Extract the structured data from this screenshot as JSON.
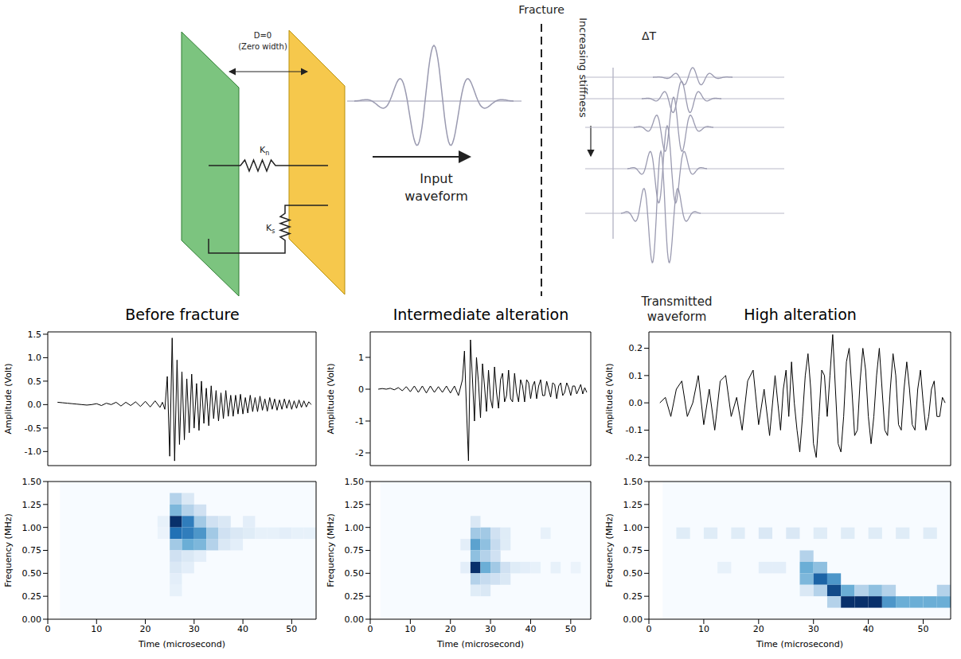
{
  "diagram": {
    "gap": "D=0",
    "gap_note": "(Zero width)",
    "normal_stiffness": {
      "symbol": "K",
      "subscript": "n"
    },
    "shear_stiffness": {
      "symbol": "K",
      "subscript": "s"
    },
    "input": "Input waveform",
    "fracture": "Fracture",
    "delay": "ΔT",
    "stiffness_trend": "Increasing stiffness",
    "output": "Transmitted waveform"
  },
  "chart_data": [
    {
      "type": "line",
      "title": "Before fracture",
      "y_label": "Amplitude (Volt)",
      "color": "#000000",
      "tick_labels": "y",
      "xlim": [
        0,
        55
      ],
      "ylim": [
        -1.3,
        1.55
      ],
      "yticks": [
        {
          "value": -1,
          "label": "-1.0"
        },
        {
          "value": -0.5,
          "label": "-0.5"
        },
        {
          "value": 0,
          "label": "0.0"
        },
        {
          "value": 0.5,
          "label": "0.5"
        },
        {
          "value": 1,
          "label": "1.0"
        },
        {
          "value": 1.5,
          "label": "1.5"
        }
      ],
      "x": [
        2,
        3,
        4,
        5,
        6,
        7,
        8,
        9,
        10,
        11,
        12,
        13,
        14,
        15,
        16,
        17,
        18,
        19,
        20,
        21,
        22,
        23,
        23.5,
        24,
        24.5,
        25,
        25.5,
        26,
        26.5,
        27,
        27.5,
        28,
        28.5,
        29,
        29.5,
        30,
        30.5,
        31,
        31.5,
        32,
        32.5,
        33,
        33.5,
        34,
        34.5,
        35,
        35.5,
        36,
        36.5,
        37,
        37.5,
        38,
        38.5,
        39,
        39.5,
        40,
        40.5,
        41,
        41.5,
        42,
        42.5,
        43,
        43.5,
        44,
        44.5,
        45,
        45.5,
        46,
        46.5,
        47,
        47.5,
        48,
        48.5,
        49,
        49.5,
        50,
        50.5,
        51,
        51.5,
        52,
        52.5,
        53,
        53.5,
        54
      ],
      "values": [
        0.05,
        0.04,
        0.03,
        0.02,
        0.01,
        0,
        -0.01,
        0,
        0.02,
        -0.02,
        0.03,
        0,
        0.05,
        -0.03,
        0.05,
        -0.02,
        0.06,
        -0.04,
        0.07,
        -0.05,
        0.08,
        -0.06,
        0.05,
        -0.1,
        0.6,
        -1.1,
        1.42,
        -1.2,
        0.95,
        -0.85,
        0.7,
        -0.75,
        0.55,
        -0.6,
        0.65,
        -0.5,
        0.45,
        -0.55,
        0.5,
        -0.4,
        0.35,
        -0.45,
        0.4,
        -0.3,
        0.3,
        -0.35,
        0.25,
        -0.3,
        0.3,
        -0.25,
        0.2,
        -0.25,
        0.2,
        -0.2,
        0.22,
        -0.2,
        0.15,
        -0.18,
        0.2,
        -0.15,
        0.15,
        -0.15,
        0.18,
        -0.12,
        0.12,
        -0.14,
        0.15,
        -0.1,
        0.12,
        -0.12,
        0.1,
        -0.1,
        0.12,
        -0.08,
        0.1,
        -0.1,
        0.08,
        -0.08,
        0.1,
        -0.06,
        0.08,
        -0.05,
        0.06,
        0
      ]
    },
    {
      "type": "line",
      "title": "Intermediate alteration",
      "y_label": "Amplitude (Volt)",
      "color": "#000000",
      "tick_labels": "y",
      "xlim": [
        0,
        55
      ],
      "ylim": [
        -2.4,
        1.8
      ],
      "yticks": [
        -2,
        -1,
        0,
        1
      ],
      "x": [
        2,
        3,
        4,
        5,
        6,
        7,
        8,
        9,
        10,
        11,
        12,
        13,
        14,
        15,
        16,
        17,
        18,
        19,
        20,
        21,
        22,
        23,
        23.5,
        24,
        24.5,
        25,
        25.5,
        26,
        26.5,
        27,
        27.5,
        28,
        28.5,
        29,
        29.5,
        30,
        30.5,
        31,
        31.5,
        32,
        32.5,
        33,
        33.5,
        34,
        34.5,
        35,
        35.5,
        36,
        36.5,
        37,
        37.5,
        38,
        38.5,
        39,
        39.5,
        40,
        40.5,
        41,
        41.5,
        42,
        42.5,
        43,
        43.5,
        44,
        44.5,
        45,
        45.5,
        46,
        46.5,
        47,
        47.5,
        48,
        48.5,
        49,
        49.5,
        50,
        50.5,
        51,
        51.5,
        52,
        52.5,
        53,
        53.5,
        54
      ],
      "values": [
        0,
        0.02,
        0,
        0.03,
        -0.02,
        0.05,
        -0.05,
        0.08,
        -0.08,
        0.1,
        -0.1,
        0.1,
        -0.12,
        0.1,
        -0.1,
        0.08,
        -0.1,
        0.1,
        -0.12,
        0.1,
        -0.2,
        0.3,
        1.2,
        -0.6,
        -2.25,
        1.55,
        0.3,
        -1.0,
        1.0,
        0.2,
        -0.9,
        0.8,
        0.1,
        -0.7,
        0.6,
        -0.3,
        -0.6,
        0.7,
        -0.1,
        -0.6,
        0.3,
        0.5,
        -0.4,
        -0.2,
        0.6,
        -0.3,
        -0.4,
        0.5,
        -0.1,
        -0.4,
        0.3,
        0.1,
        -0.4,
        0.3,
        0.2,
        -0.3,
        0.1,
        0.25,
        -0.3,
        0.1,
        0.3,
        -0.2,
        -0.2,
        0.25,
        0,
        -0.25,
        0.2,
        0.15,
        -0.3,
        0.1,
        0.2,
        -0.2,
        -0.1,
        0.2,
        0.05,
        -0.2,
        0.1,
        0.1,
        -0.15,
        0,
        0.15,
        -0.15,
        0.05,
        -0.1
      ]
    },
    {
      "type": "line",
      "title": "High alteration",
      "y_label": "Amplitude (Volt)",
      "color": "#000000",
      "tick_labels": "y",
      "xlim": [
        0,
        55
      ],
      "ylim": [
        -0.23,
        0.26
      ],
      "yticks": [
        {
          "value": -0.2,
          "label": "-0.2"
        },
        {
          "value": -0.1,
          "label": "-0.1"
        },
        {
          "value": 0,
          "label": "0.0"
        },
        {
          "value": 0.1,
          "label": "0.1"
        },
        {
          "value": 0.2,
          "label": "0.2"
        }
      ],
      "x": [
        2,
        3,
        4,
        5,
        6,
        7,
        8,
        9,
        10,
        11,
        12,
        13,
        14,
        15,
        16,
        17,
        18,
        19,
        20,
        21,
        22,
        23,
        23.5,
        24,
        24.5,
        25,
        25.5,
        26,
        26.5,
        27,
        27.5,
        28,
        28.5,
        29,
        29.5,
        30,
        30.5,
        31,
        31.5,
        32,
        32.5,
        33,
        33.5,
        34,
        34.5,
        35,
        35.5,
        36,
        36.5,
        37,
        37.5,
        38,
        38.5,
        39,
        39.5,
        40,
        40.5,
        41,
        41.5,
        42,
        42.5,
        43,
        43.5,
        44,
        44.5,
        45,
        45.5,
        46,
        46.5,
        47,
        47.5,
        48,
        48.5,
        49,
        49.5,
        50,
        50.5,
        51,
        51.5,
        52,
        52.5,
        53,
        53.5,
        54
      ],
      "values": [
        0,
        0.02,
        -0.05,
        0.05,
        0.08,
        -0.05,
        0,
        0.1,
        -0.08,
        0.05,
        -0.1,
        0.08,
        0.1,
        -0.05,
        0.02,
        -0.1,
        0.08,
        0.12,
        -0.08,
        0.05,
        -0.12,
        0.1,
        0,
        -0.1,
        0.05,
        0.12,
        -0.05,
        0.15,
        0,
        -0.1,
        -0.18,
        -0.05,
        0.1,
        0.18,
        0.05,
        -0.15,
        -0.2,
        -0.05,
        0.12,
        0.1,
        -0.05,
        0.1,
        0.25,
        0.05,
        -0.15,
        -0.18,
        -0.05,
        0.15,
        0.2,
        0.05,
        -0.12,
        -0.1,
        0.08,
        0.2,
        0.12,
        -0.05,
        -0.15,
        -0.05,
        0.1,
        0.2,
        0.05,
        -0.1,
        -0.12,
        0.05,
        0.18,
        0.1,
        -0.08,
        -0.1,
        0.05,
        0.15,
        0.05,
        -0.08,
        -0.1,
        0.05,
        0.12,
        0,
        -0.1,
        -0.05,
        0.05,
        0.08,
        -0.05,
        -0.05,
        0.02,
        0
      ]
    },
    {
      "type": "heatmap",
      "x_label": "Time (microsecond)",
      "y_label": "Frequency (MHz)",
      "xlim": [
        0,
        55
      ],
      "ylim": [
        0,
        1.5
      ],
      "xticks": [
        0,
        10,
        20,
        30,
        40,
        50
      ],
      "yticks": [
        {
          "value": 0,
          "label": "0.00"
        },
        {
          "value": 0.25,
          "label": "0.25"
        },
        {
          "value": 0.5,
          "label": "0.50"
        },
        {
          "value": 0.75,
          "label": "0.75"
        },
        {
          "value": 1,
          "label": "1.00"
        },
        {
          "value": 1.25,
          "label": "1.25"
        },
        {
          "value": 1.5,
          "label": "1.50"
        }
      ],
      "time_bins": [
        2.5,
        5,
        7.5,
        10,
        12.5,
        15,
        17.5,
        20,
        22.5,
        25,
        27.5,
        30,
        32.5,
        35,
        37.5,
        40,
        42.5,
        45,
        47.5,
        50,
        52.5,
        55
      ],
      "frequency_bins": [
        0,
        0.125,
        0.25,
        0.375,
        0.5,
        0.625,
        0.75,
        0.875,
        1,
        1.125,
        1.25,
        1.375,
        1.5
      ],
      "cells": [
        [
          25,
          1.25,
          0.3
        ],
        [
          25,
          1.125,
          0.45
        ],
        [
          25,
          1,
          1
        ],
        [
          25,
          0.875,
          0.75
        ],
        [
          25,
          0.75,
          0.35
        ],
        [
          25,
          0.625,
          0.2
        ],
        [
          25,
          0.5,
          0.15
        ],
        [
          25,
          0.375,
          0.1
        ],
        [
          25,
          0.25,
          0.08
        ],
        [
          27.5,
          1.25,
          0.15
        ],
        [
          27.5,
          1.125,
          0.3
        ],
        [
          27.5,
          1,
          0.7
        ],
        [
          27.5,
          0.875,
          0.7
        ],
        [
          27.5,
          0.75,
          0.5
        ],
        [
          27.5,
          0.625,
          0.15
        ],
        [
          27.5,
          0.5,
          0.1
        ],
        [
          30,
          1.125,
          0.2
        ],
        [
          30,
          1,
          0.35
        ],
        [
          30,
          0.875,
          0.6
        ],
        [
          30,
          0.75,
          0.45
        ],
        [
          30,
          0.625,
          0.1
        ],
        [
          32.5,
          1,
          0.2
        ],
        [
          32.5,
          0.875,
          0.35
        ],
        [
          32.5,
          0.75,
          0.3
        ],
        [
          35,
          1,
          0.15
        ],
        [
          35,
          0.875,
          0.2
        ],
        [
          35,
          0.75,
          0.15
        ],
        [
          37.5,
          0.875,
          0.15
        ],
        [
          37.5,
          0.75,
          0.1
        ],
        [
          40,
          1,
          0.1
        ],
        [
          40,
          0.875,
          0.12
        ],
        [
          42.5,
          0.875,
          0.08
        ],
        [
          45,
          0.875,
          0.08
        ],
        [
          47.5,
          0.875,
          0.1
        ],
        [
          50,
          0.875,
          0.08
        ],
        [
          52.5,
          0.875,
          0.08
        ],
        [
          22.5,
          1,
          0.08
        ],
        [
          22.5,
          0.875,
          0.06
        ]
      ]
    },
    {
      "type": "heatmap",
      "x_label": "Time (microsecond)",
      "y_label": "Frequency (MHz)",
      "xlim": [
        0,
        55
      ],
      "ylim": [
        0,
        1.5
      ],
      "xticks": [
        0,
        10,
        20,
        30,
        40,
        50
      ],
      "yticks": [
        {
          "value": 0,
          "label": "0.00"
        },
        {
          "value": 0.25,
          "label": "0.25"
        },
        {
          "value": 0.5,
          "label": "0.50"
        },
        {
          "value": 0.75,
          "label": "0.75"
        },
        {
          "value": 1,
          "label": "1.00"
        },
        {
          "value": 1.25,
          "label": "1.25"
        },
        {
          "value": 1.5,
          "label": "1.50"
        }
      ],
      "time_bins": [
        2.5,
        5,
        7.5,
        10,
        12.5,
        15,
        17.5,
        20,
        22.5,
        25,
        27.5,
        30,
        32.5,
        35,
        37.5,
        40,
        42.5,
        45,
        47.5,
        50,
        52.5,
        55
      ],
      "frequency_bins": [
        0,
        0.125,
        0.25,
        0.375,
        0.5,
        0.625,
        0.75,
        0.875,
        1,
        1.125,
        1.25,
        1.375,
        1.5
      ],
      "cells": [
        [
          22.5,
          0.5,
          0.1
        ],
        [
          22.5,
          0.75,
          0.1
        ],
        [
          25,
          0.875,
          0.35
        ],
        [
          25,
          0.75,
          0.55
        ],
        [
          25,
          0.625,
          0.4
        ],
        [
          25,
          0.5,
          1
        ],
        [
          25,
          0.375,
          0.3
        ],
        [
          25,
          0.25,
          0.12
        ],
        [
          25,
          1,
          0.15
        ],
        [
          27.5,
          0.875,
          0.35
        ],
        [
          27.5,
          0.75,
          0.4
        ],
        [
          27.5,
          0.625,
          0.3
        ],
        [
          27.5,
          0.5,
          0.5
        ],
        [
          27.5,
          0.375,
          0.25
        ],
        [
          27.5,
          0.25,
          0.15
        ],
        [
          30,
          0.875,
          0.2
        ],
        [
          30,
          0.75,
          0.25
        ],
        [
          30,
          0.625,
          0.2
        ],
        [
          30,
          0.5,
          0.35
        ],
        [
          30,
          0.375,
          0.2
        ],
        [
          32.5,
          0.875,
          0.12
        ],
        [
          32.5,
          0.75,
          0.12
        ],
        [
          32.5,
          0.5,
          0.2
        ],
        [
          32.5,
          0.375,
          0.15
        ],
        [
          35,
          0.5,
          0.12
        ],
        [
          37.5,
          0.5,
          0.1
        ],
        [
          40,
          0.5,
          0.08
        ],
        [
          42.5,
          0.875,
          0.08
        ],
        [
          45,
          0.5,
          0.08
        ],
        [
          50,
          0.5,
          0.06
        ]
      ]
    },
    {
      "type": "heatmap",
      "x_label": "Time (microsecond)",
      "y_label": "Frequency (MHz)",
      "xlim": [
        0,
        55
      ],
      "ylim": [
        0,
        1.5
      ],
      "xticks": [
        0,
        10,
        20,
        30,
        40,
        50
      ],
      "yticks": [
        {
          "value": 0,
          "label": "0.00"
        },
        {
          "value": 0.25,
          "label": "0.25"
        },
        {
          "value": 0.5,
          "label": "0.50"
        },
        {
          "value": 0.75,
          "label": "0.75"
        },
        {
          "value": 1,
          "label": "1.00"
        },
        {
          "value": 1.25,
          "label": "1.25"
        },
        {
          "value": 1.5,
          "label": "1.50"
        }
      ],
      "time_bins": [
        2.5,
        5,
        7.5,
        10,
        12.5,
        15,
        17.5,
        20,
        22.5,
        25,
        27.5,
        30,
        32.5,
        35,
        37.5,
        40,
        42.5,
        45,
        47.5,
        50,
        52.5,
        55
      ],
      "frequency_bins": [
        0,
        0.125,
        0.25,
        0.375,
        0.5,
        0.625,
        0.75,
        0.875,
        1,
        1.125,
        1.25,
        1.375,
        1.5
      ],
      "cells": [
        [
          5,
          0.875,
          0.12
        ],
        [
          10,
          0.875,
          0.12
        ],
        [
          15,
          0.875,
          0.12
        ],
        [
          20,
          0.875,
          0.15
        ],
        [
          25,
          0.875,
          0.15
        ],
        [
          30,
          0.875,
          0.12
        ],
        [
          35,
          0.875,
          0.12
        ],
        [
          40,
          0.875,
          0.12
        ],
        [
          45,
          0.875,
          0.12
        ],
        [
          50,
          0.875,
          0.12
        ],
        [
          12.5,
          0.5,
          0.08
        ],
        [
          20,
          0.5,
          0.1
        ],
        [
          22.5,
          0.5,
          0.1
        ],
        [
          27.5,
          0.625,
          0.3
        ],
        [
          27.5,
          0.5,
          0.5
        ],
        [
          27.5,
          0.375,
          0.45
        ],
        [
          27.5,
          0.25,
          0.15
        ],
        [
          30,
          0.5,
          0.4
        ],
        [
          30,
          0.375,
          0.8
        ],
        [
          30,
          0.25,
          0.3
        ],
        [
          32.5,
          0.375,
          0.6
        ],
        [
          32.5,
          0.25,
          0.9
        ],
        [
          32.5,
          0.125,
          0.3
        ],
        [
          35,
          0.25,
          0.5
        ],
        [
          35,
          0.125,
          1
        ],
        [
          37.5,
          0.25,
          0.3
        ],
        [
          37.5,
          0.125,
          1
        ],
        [
          40,
          0.25,
          0.4
        ],
        [
          40,
          0.125,
          1
        ],
        [
          42.5,
          0.25,
          0.3
        ],
        [
          42.5,
          0.125,
          0.6
        ],
        [
          45,
          0.125,
          0.5
        ],
        [
          47.5,
          0.125,
          0.5
        ],
        [
          50,
          0.125,
          0.5
        ],
        [
          52.5,
          0.25,
          0.3
        ],
        [
          52.5,
          0.125,
          0.5
        ]
      ]
    }
  ]
}
